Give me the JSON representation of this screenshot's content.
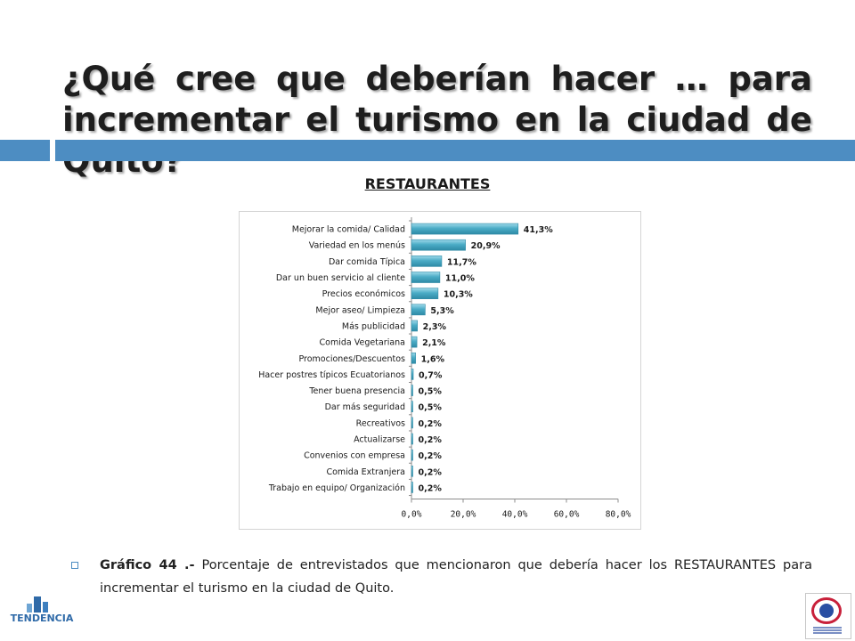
{
  "slide": {
    "title_line1": "¿Qué cree que deberían hacer … para",
    "title_line2": "incrementar el turismo en la ciudad de Quito?",
    "subtitle": "RESTAURANTES",
    "caption_bold": "Gráfico 44 .-",
    "caption_text": " Porcentaje de entrevistados que mencionaron que debería hacer los RESTAURANTES para incrementar el turismo en la ciudad de Quito.",
    "accent_color": "#4d8dc2",
    "logo_left_name": "TENDENCIA",
    "logo_left_icon": "buildings-logo-icon",
    "logo_right_icon": "tourism-emblem-icon"
  },
  "chart_data": {
    "type": "bar",
    "orientation": "horizontal",
    "categories": [
      "Mejorar la comida/ Calidad",
      "Variedad en los menús",
      "Dar comida Típica",
      "Dar un buen servicio al cliente",
      "Precios económicos",
      "Mejor aseo/ Limpieza",
      "Más publicidad",
      "Comida Vegetariana",
      "Promociones/Descuentos",
      "Hacer postres típicos Ecuatorianos",
      "Tener buena presencia",
      "Dar más seguridad",
      "Recreativos",
      "Actualizarse",
      "Convenios con empresa",
      "Comida Extranjera",
      "Trabajo en equipo/ Organización"
    ],
    "values": [
      41.3,
      20.9,
      11.7,
      11.0,
      10.3,
      5.3,
      2.3,
      2.1,
      1.6,
      0.7,
      0.5,
      0.5,
      0.2,
      0.2,
      0.2,
      0.2,
      0.2
    ],
    "value_labels": [
      "41,3%",
      "20,9%",
      "11,7%",
      "11,0%",
      "10,3%",
      "5,3%",
      "2,3%",
      "2,1%",
      "1,6%",
      "0,7%",
      "0,5%",
      "0,5%",
      "0,2%",
      "0,2%",
      "0,2%",
      "0,2%",
      "0,2%"
    ],
    "xlim": [
      0,
      80
    ],
    "x_ticks": [
      0,
      20,
      40,
      60,
      80
    ],
    "x_tick_labels": [
      "0,0%",
      "20,0%",
      "40,0%",
      "60,0%",
      "80,0%"
    ],
    "bar_color": "#4bacc6",
    "grid": false,
    "legend": false
  }
}
